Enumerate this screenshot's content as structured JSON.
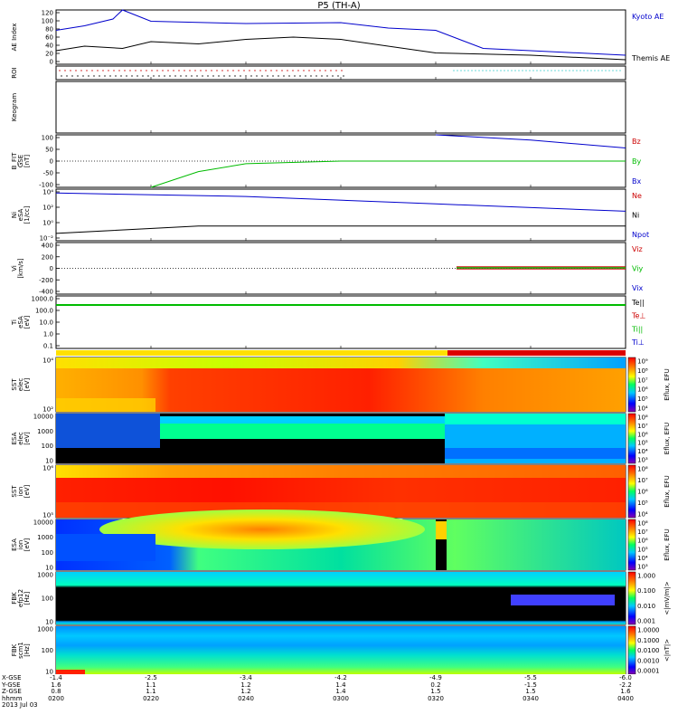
{
  "title": "P5 (TH-A)",
  "panels": [
    {
      "id": "ae",
      "label": [
        "AE Index"
      ],
      "ticks": [
        "120",
        "100",
        "80",
        "60",
        "40",
        "20",
        "0"
      ],
      "legend": [
        {
          "text": "Kyoto AE",
          "color": "#0000cc"
        },
        {
          "text": "Themis AE",
          "color": "#000000"
        }
      ]
    },
    {
      "id": "roi",
      "label": [
        "ROI"
      ],
      "ticks": [],
      "legend": []
    },
    {
      "id": "keo",
      "label": [
        "Keogram"
      ],
      "ticks": [],
      "legend": []
    },
    {
      "id": "bfit",
      "label": [
        "B_FIT",
        "GSE",
        "[nT]"
      ],
      "ticks": [
        "100",
        "50",
        "0",
        "-50",
        "-100"
      ],
      "legend": [
        {
          "text": "Bz",
          "color": "#cc0000"
        },
        {
          "text": "By",
          "color": "#00bb00"
        },
        {
          "text": "Bx",
          "color": "#0000cc"
        }
      ]
    },
    {
      "id": "ni",
      "label": [
        "Ni",
        "eSA",
        "[1/cc]"
      ],
      "ticks": [
        "10⁴",
        "10²",
        "10⁰",
        "10⁻²"
      ],
      "legend": [
        {
          "text": "Ne",
          "color": "#cc0000"
        },
        {
          "text": "Ni",
          "color": "#000000"
        },
        {
          "text": "Npot",
          "color": "#0000cc"
        }
      ]
    },
    {
      "id": "vi",
      "label": [
        "Vi",
        "[km/s]"
      ],
      "ticks": [
        "400",
        "200",
        "0",
        "-200",
        "-400"
      ],
      "legend": [
        {
          "text": "Viz",
          "color": "#cc0000"
        },
        {
          "text": "Viy",
          "color": "#00bb00"
        },
        {
          "text": "Vix",
          "color": "#0000cc"
        }
      ]
    },
    {
      "id": "ti",
      "label": [
        "Ti",
        "eSA",
        "[eV]"
      ],
      "ticks": [
        "1000.0",
        "100.0",
        "10.0",
        "1.0",
        "0.1"
      ],
      "legend": [
        {
          "text": "Te||",
          "color": "#000000"
        },
        {
          "text": "Te⊥",
          "color": "#cc0000"
        },
        {
          "text": "Ti||",
          "color": "#00bb00"
        },
        {
          "text": "Ti⊥",
          "color": "#0000cc"
        }
      ]
    },
    {
      "id": "sst_e",
      "label": [
        "SST",
        "elec",
        "[eV]"
      ],
      "ticks": [
        "10⁴",
        "10²"
      ],
      "legend": []
    },
    {
      "id": "esa_e",
      "label": [
        "ESA",
        "elec",
        "[eV]"
      ],
      "ticks": [
        "10000",
        "1000",
        "100",
        "10"
      ],
      "legend": []
    },
    {
      "id": "sst_i",
      "label": [
        "SST",
        "ion",
        "[eV]"
      ],
      "ticks": [
        "10⁶",
        "10⁵"
      ],
      "legend": []
    },
    {
      "id": "esa_i",
      "label": [
        "ESA",
        "ion",
        "[eV]"
      ],
      "ticks": [
        "10000",
        "1000",
        "100",
        "10"
      ],
      "legend": []
    },
    {
      "id": "fbk_e",
      "label": [
        "FBK",
        "efp12",
        "[Hz]"
      ],
      "ticks": [
        "1000",
        "100",
        "10"
      ],
      "legend": []
    },
    {
      "id": "fbk_b",
      "label": [
        "FBK",
        "scm1",
        "[Hz]"
      ],
      "ticks": [
        "1000",
        "100",
        "10"
      ],
      "legend": []
    }
  ],
  "colorbars": [
    {
      "ticks": [
        "10⁹",
        "10⁸",
        "10⁷",
        "10⁶",
        "10⁵",
        "10⁴"
      ],
      "title": "Eflux, EFU"
    },
    {
      "ticks": [
        "10⁸",
        "10⁷",
        "10⁶",
        "10⁵",
        "10⁴",
        "10³"
      ],
      "title": "Eflux, EFU"
    },
    {
      "ticks": [
        "10⁸",
        "10⁷",
        "10⁶",
        "10⁵",
        "10⁴"
      ],
      "title": "Eflux, EFU"
    },
    {
      "ticks": [
        "10⁸",
        "10⁷",
        "10⁶",
        "10⁵",
        "10⁴",
        "10³"
      ],
      "title": "Eflux, EFU"
    },
    {
      "ticks": [
        "1.000",
        "0.100",
        "0.010",
        "0.001"
      ],
      "title": "<|mV/m|>"
    },
    {
      "ticks": [
        "1.0000",
        "0.1000",
        "0.0100",
        "0.0010",
        "0.0001"
      ],
      "title": "<|nT|>"
    }
  ],
  "footer": {
    "rows": [
      "X-GSE",
      "Y-GSE",
      "Z-GSE",
      "hhmm",
      "2013 Jul 03"
    ],
    "columns": [
      [
        "-1.4",
        "1.6",
        "0.8",
        "0200"
      ],
      [
        "-2.5",
        "1.1",
        "1.1",
        "0220"
      ],
      [
        "-3.4",
        "1.2",
        "1.2",
        "0240"
      ],
      [
        "-4.2",
        "1.4",
        "1.4",
        "0300"
      ],
      [
        "-4.9",
        "0.2",
        "1.5",
        "0320"
      ],
      [
        "-5.5",
        "-1.5",
        "1.5",
        "0340"
      ],
      [
        "-6.0",
        "-2.2",
        "1.6",
        "0400"
      ]
    ]
  },
  "chart_data": {
    "type": "line",
    "title": "P5 (TH-A)",
    "x_time": [
      "0200",
      "0220",
      "0240",
      "0300",
      "0320",
      "0340",
      "0400"
    ],
    "series": [
      {
        "name": "Kyoto AE",
        "panel": "ae",
        "color": "#0000cc",
        "x": [
          "0200",
          "0206",
          "0212",
          "0214",
          "0220",
          "0240",
          "0300",
          "0310",
          "0320",
          "0330",
          "0340",
          "0400"
        ],
        "values": [
          75,
          85,
          100,
          120,
          95,
          90,
          92,
          80,
          75,
          35,
          30,
          20
        ]
      },
      {
        "name": "Themis AE",
        "panel": "ae",
        "color": "#000000",
        "x": [
          "0200",
          "0206",
          "0214",
          "0220",
          "0230",
          "0240",
          "0250",
          "0300",
          "0320",
          "0340",
          "0400"
        ],
        "values": [
          30,
          40,
          35,
          50,
          45,
          55,
          60,
          55,
          25,
          20,
          10
        ]
      },
      {
        "name": "Bx",
        "panel": "bfit",
        "color": "#0000cc",
        "x": [
          "0320",
          "0340",
          "0400"
        ],
        "values": [
          100,
          80,
          50
        ]
      },
      {
        "name": "By",
        "panel": "bfit",
        "color": "#00bb00",
        "x": [
          "0220",
          "0230",
          "0240",
          "0300",
          "0400"
        ],
        "values": [
          -100,
          -40,
          -10,
          0,
          0
        ]
      },
      {
        "name": "Npot",
        "panel": "ni",
        "color": "#0000cc",
        "x": [
          "0200",
          "0240",
          "0320",
          "0400"
        ],
        "values": [
          30000,
          10000,
          1000,
          100
        ]
      },
      {
        "name": "Ni",
        "panel": "ni",
        "color": "#000000",
        "x": [
          "0200",
          "0230",
          "0300",
          "0400"
        ],
        "values": [
          0.1,
          1,
          1,
          1
        ]
      }
    ],
    "ylim": {
      "ae": [
        0,
        120
      ],
      "bfit": [
        -100,
        100
      ],
      "vi": [
        -400,
        400
      ]
    }
  }
}
